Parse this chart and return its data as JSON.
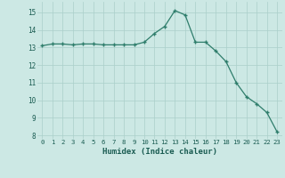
{
  "x": [
    0,
    1,
    2,
    3,
    4,
    5,
    6,
    7,
    8,
    9,
    10,
    11,
    12,
    13,
    14,
    15,
    16,
    17,
    18,
    19,
    20,
    21,
    22,
    23
  ],
  "y": [
    13.1,
    13.2,
    13.2,
    13.15,
    13.2,
    13.2,
    13.15,
    13.15,
    13.15,
    13.15,
    13.3,
    13.8,
    14.2,
    15.1,
    14.85,
    13.3,
    13.3,
    12.8,
    12.2,
    11.0,
    10.2,
    9.8,
    9.3,
    8.2
  ],
  "xlabel": "Humidex (Indice chaleur)",
  "ylim": [
    7.8,
    15.6
  ],
  "xlim": [
    -0.5,
    23.5
  ],
  "yticks": [
    8,
    9,
    10,
    11,
    12,
    13,
    14,
    15
  ],
  "xticks": [
    0,
    1,
    2,
    3,
    4,
    5,
    6,
    7,
    8,
    9,
    10,
    11,
    12,
    13,
    14,
    15,
    16,
    17,
    18,
    19,
    20,
    21,
    22,
    23
  ],
  "line_color": "#2e7d6b",
  "marker": "+",
  "bg_color": "#cce8e4",
  "grid_color": "#aacfca",
  "label_color": "#1a5c52",
  "tick_color": "#1a5c52"
}
